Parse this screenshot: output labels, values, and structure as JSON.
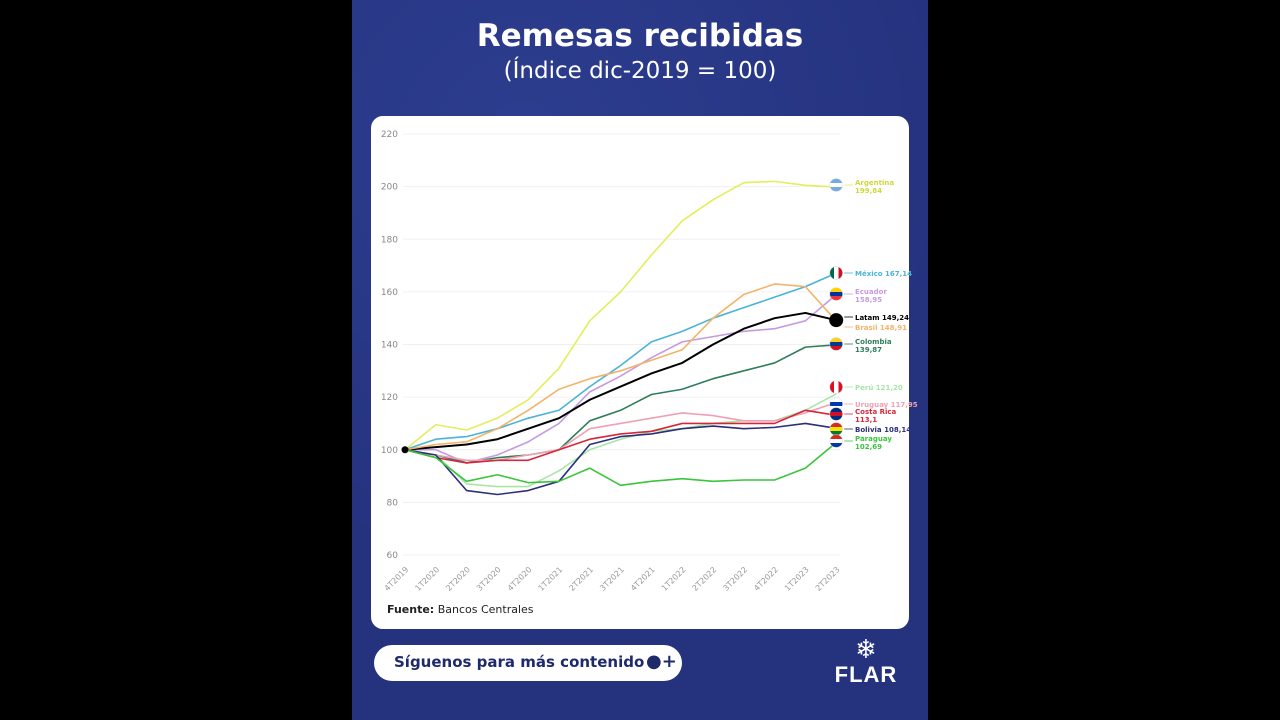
{
  "header": {
    "title": "Remesas recibidas",
    "subtitle": "(Índice dic-2019 = 100)"
  },
  "footer": {
    "source_label": "Fuente:",
    "source_value": "Bancos Centrales",
    "follow_label": "Síguenos para más contenido",
    "follow_icon": "person-add-icon",
    "logo": "FLAR"
  },
  "chart_data": {
    "type": "line",
    "title": "Remesas recibidas",
    "subtitle": "(Índice dic-2019 = 100)",
    "ylim": [
      60,
      220
    ],
    "yticks": [
      60,
      80,
      100,
      120,
      140,
      160,
      180,
      200,
      220
    ],
    "grid": true,
    "categories": [
      "4T2019",
      "1T2020",
      "2T2020",
      "3T2020",
      "4T2020",
      "1T2021",
      "2T2021",
      "3T2021",
      "4T2021",
      "1T2022",
      "2T2022",
      "3T2022",
      "4T2022",
      "1T2023",
      "2T2023"
    ],
    "series": [
      {
        "name": "Argentina",
        "end_label": "199,84",
        "color": "#e4ee5a",
        "values": [
          100,
          109.5,
          107.5,
          112,
          119,
          131,
          149,
          160,
          174,
          187,
          195,
          201.5,
          202,
          200.5,
          199.84
        ]
      },
      {
        "name": "México",
        "end_label": "167,14",
        "color": "#4bb3d8",
        "values": [
          100,
          104,
          105,
          108,
          112,
          115,
          124,
          132,
          141,
          145,
          150,
          154,
          158,
          162,
          167.14
        ]
      },
      {
        "name": "Ecuador",
        "end_label": "158,95",
        "color": "#c59be0",
        "values": [
          100,
          100,
          95,
          98,
          103,
          110,
          122,
          128,
          135,
          141,
          143,
          145,
          146,
          149,
          158.95
        ]
      },
      {
        "name": "Latam",
        "end_label": "149,24",
        "color": "#000000",
        "values": [
          100,
          101,
          102,
          104,
          108,
          112,
          119,
          124,
          129,
          133,
          140,
          146,
          150,
          152,
          149.24
        ]
      },
      {
        "name": "Brasil",
        "end_label": "148,91",
        "color": "#f2b36a",
        "values": [
          100,
          102,
          103,
          108,
          115,
          123,
          127,
          130,
          134,
          138,
          150,
          159,
          163,
          162,
          148.91
        ]
      },
      {
        "name": "Colombia",
        "end_label": "139,87",
        "color": "#2e7d5b",
        "values": [
          100,
          98,
          95,
          97,
          98,
          100,
          111,
          115,
          121,
          123,
          127,
          130,
          133,
          139,
          139.87
        ]
      },
      {
        "name": "Perú",
        "end_label": "121,20",
        "color": "#a8e6a8",
        "values": [
          100,
          98,
          87,
          86,
          86,
          92,
          100,
          104,
          107,
          108,
          110,
          111,
          111,
          115,
          121.2
        ]
      },
      {
        "name": "Uruguay",
        "end_label": "117,95",
        "color": "#f0a0b4",
        "values": [
          100,
          98,
          96,
          96,
          98,
          100,
          108,
          110,
          112,
          114,
          113,
          111,
          111,
          114,
          117.95
        ]
      },
      {
        "name": "Costa Rica",
        "end_label": "113,1",
        "color": "#d6263c",
        "values": [
          100,
          97,
          95,
          96,
          96,
          100,
          104,
          106,
          107,
          110,
          110,
          110,
          110,
          115,
          113.1
        ]
      },
      {
        "name": "Bolivia",
        "end_label": "108,14",
        "color": "#2a2f7a",
        "values": [
          100,
          98,
          84.5,
          83,
          84.5,
          88,
          102,
          105,
          106,
          108,
          109,
          108,
          108.5,
          110,
          108.14
        ]
      },
      {
        "name": "Paraguay",
        "end_label": "102,69",
        "color": "#3cc43c",
        "values": [
          100,
          97,
          88,
          90.5,
          87.5,
          88,
          93,
          86.5,
          88,
          89,
          88,
          88.5,
          88.5,
          93,
          102.69
        ]
      }
    ]
  }
}
